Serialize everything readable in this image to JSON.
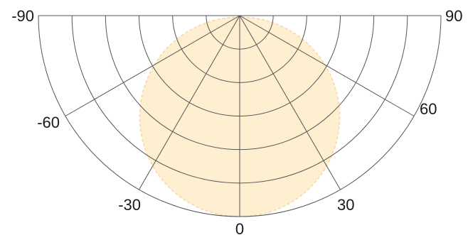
{
  "chart_data": {
    "type": "polar",
    "subtype": "light-distribution-diagram",
    "title": "",
    "angle_unit": "degrees",
    "angle_range": [
      -90,
      90
    ],
    "angle_zero": "bottom",
    "angle_ticks": [
      -90,
      -60,
      -30,
      0,
      30,
      60,
      90
    ],
    "tick_labels": [
      "-90",
      "-60",
      "-30",
      "0",
      "30",
      "60",
      "90"
    ],
    "radial_rings": 6,
    "radial_max": 6,
    "grid": true,
    "grid_color": "#555555",
    "series": [
      {
        "shape": "circle",
        "fill_color": "#fdefcf",
        "edge_color": "#f7d9a6",
        "edge_style": "dashed",
        "points": [
          {
            "angle": 0,
            "r": 6
          },
          {
            "angle": 15,
            "r": 5.8
          },
          {
            "angle": 30,
            "r": 5.2
          },
          {
            "angle": 45,
            "r": 4.24
          },
          {
            "angle": 60,
            "r": 3
          },
          {
            "angle": 75,
            "r": 1.55
          },
          {
            "angle": 90,
            "r": 0
          },
          {
            "angle": -15,
            "r": 5.8
          },
          {
            "angle": -30,
            "r": 5.2
          },
          {
            "angle": -45,
            "r": 4.24
          },
          {
            "angle": -60,
            "r": 3
          },
          {
            "angle": -75,
            "r": 1.55
          },
          {
            "angle": -90,
            "r": 0
          }
        ]
      }
    ]
  }
}
